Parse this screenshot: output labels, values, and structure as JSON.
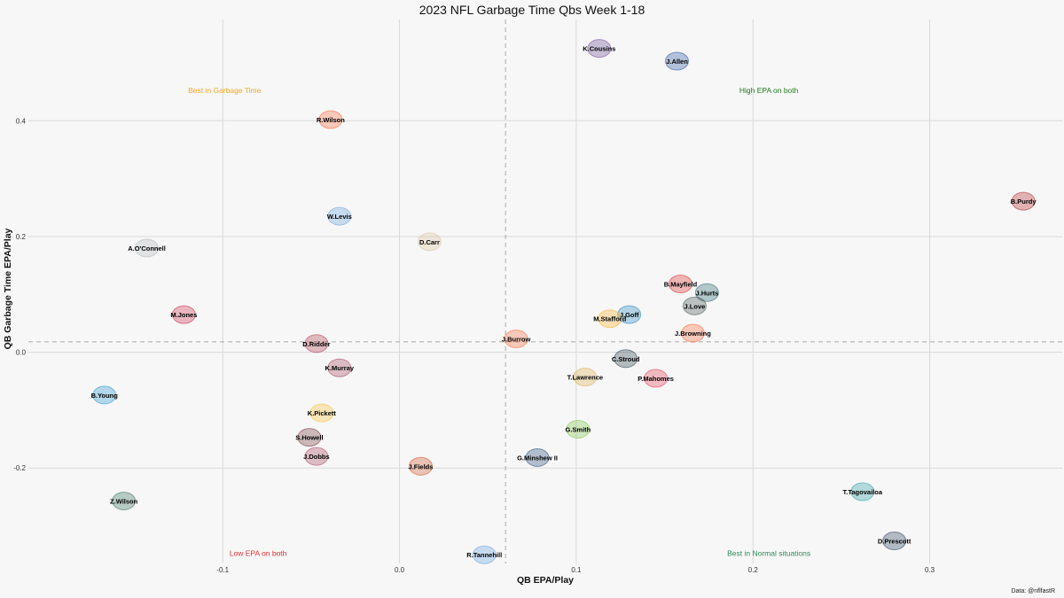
{
  "chart_data": {
    "type": "scatter",
    "title": "2023 NFL Garbage Time Qbs Week 1-18",
    "xlabel": "QB EPA/Play",
    "ylabel": "QB Garbage Time EPA/Play",
    "xlim": [
      -0.21,
      0.375
    ],
    "ylim": [
      -0.365,
      0.575
    ],
    "xticks": [
      -0.1,
      0.0,
      0.1,
      0.2,
      0.3
    ],
    "xtick_labels": [
      "-0.1",
      "0.0",
      "0.1",
      "0.2",
      "0.3"
    ],
    "yticks": [
      -0.2,
      0.0,
      0.2,
      0.4
    ],
    "ytick_labels": [
      "-0.2",
      "0.0",
      "0.2",
      "0.4"
    ],
    "grid": true,
    "reference_lines": {
      "x": 0.06,
      "y": 0.018
    },
    "points": [
      {
        "label": "K.Cousins",
        "x": 0.113,
        "y": 0.525,
        "color": "#4F2683"
      },
      {
        "label": "J.Allen",
        "x": 0.157,
        "y": 0.503,
        "color": "#00338D"
      },
      {
        "label": "R.Wilson",
        "x": -0.039,
        "y": 0.402,
        "color": "#FB4F14"
      },
      {
        "label": "B.Purdy",
        "x": 0.353,
        "y": 0.261,
        "color": "#AA0000"
      },
      {
        "label": "W.Levis",
        "x": -0.034,
        "y": 0.235,
        "color": "#4B92DB"
      },
      {
        "label": "D.Carr",
        "x": 0.017,
        "y": 0.191,
        "color": "#D3BC8D"
      },
      {
        "label": "A.O'Connell",
        "x": -0.143,
        "y": 0.18,
        "color": "#A5ACAF"
      },
      {
        "label": "B.Mayfield",
        "x": 0.159,
        "y": 0.118,
        "color": "#D50A0A"
      },
      {
        "label": "J.Hurts",
        "x": 0.174,
        "y": 0.103,
        "color": "#004C54"
      },
      {
        "label": "J.Love",
        "x": 0.167,
        "y": 0.08,
        "color": "#203731"
      },
      {
        "label": "J.Goff",
        "x": 0.13,
        "y": 0.065,
        "color": "#0076B6"
      },
      {
        "label": "M.Stafford",
        "x": 0.119,
        "y": 0.058,
        "color": "#FFA300"
      },
      {
        "label": "M.Jones",
        "x": -0.122,
        "y": 0.065,
        "color": "#C60C30"
      },
      {
        "label": "J.Browning",
        "x": 0.166,
        "y": 0.033,
        "color": "#FB4F14"
      },
      {
        "label": "J.Burrow",
        "x": 0.066,
        "y": 0.023,
        "color": "#FB4F14"
      },
      {
        "label": "D.Ridder",
        "x": -0.047,
        "y": 0.015,
        "color": "#A71930"
      },
      {
        "label": "C.Stroud",
        "x": 0.128,
        "y": -0.011,
        "color": "#03202F"
      },
      {
        "label": "K.Murray",
        "x": -0.034,
        "y": -0.027,
        "color": "#97233F"
      },
      {
        "label": "T.Lawrence",
        "x": 0.105,
        "y": -0.043,
        "color": "#D7A22A"
      },
      {
        "label": "P.Mahomes",
        "x": 0.145,
        "y": -0.045,
        "color": "#E31837"
      },
      {
        "label": "B.Young",
        "x": -0.167,
        "y": -0.074,
        "color": "#0085CA"
      },
      {
        "label": "K.Pickett",
        "x": -0.044,
        "y": -0.105,
        "color": "#FFB612"
      },
      {
        "label": "G.Smith",
        "x": 0.101,
        "y": -0.133,
        "color": "#69BE28"
      },
      {
        "label": "S.Howell",
        "x": -0.051,
        "y": -0.147,
        "color": "#5A1414"
      },
      {
        "label": "J.Dobbs",
        "x": -0.047,
        "y": -0.18,
        "color": "#97233F"
      },
      {
        "label": "G.Minshew II",
        "x": 0.078,
        "y": -0.182,
        "color": "#002C5F"
      },
      {
        "label": "J.Fields",
        "x": 0.012,
        "y": -0.197,
        "color": "#C83803"
      },
      {
        "label": "T.Tagovailoa",
        "x": 0.262,
        "y": -0.241,
        "color": "#008E97"
      },
      {
        "label": "Z.Wilson",
        "x": -0.156,
        "y": -0.257,
        "color": "#125740"
      },
      {
        "label": "D.Prescott",
        "x": 0.28,
        "y": -0.326,
        "color": "#041E42"
      },
      {
        "label": "R.Tannehill",
        "x": 0.048,
        "y": -0.35,
        "color": "#4B92DB"
      }
    ],
    "quadrant_labels": [
      {
        "text": "Best in Garbage Time",
        "x": -0.099,
        "y": 0.448,
        "color": "#F5A623"
      },
      {
        "text": "High EPA on both",
        "x": 0.209,
        "y": 0.448,
        "color": "#1E7B1E"
      },
      {
        "text": "Low EPA on both",
        "x": -0.08,
        "y": -0.352,
        "color": "#E03030"
      },
      {
        "text": "Best in Normal situations",
        "x": 0.209,
        "y": -0.352,
        "color": "#2E8B57"
      }
    ],
    "caption": "Data: @nflfastR"
  }
}
